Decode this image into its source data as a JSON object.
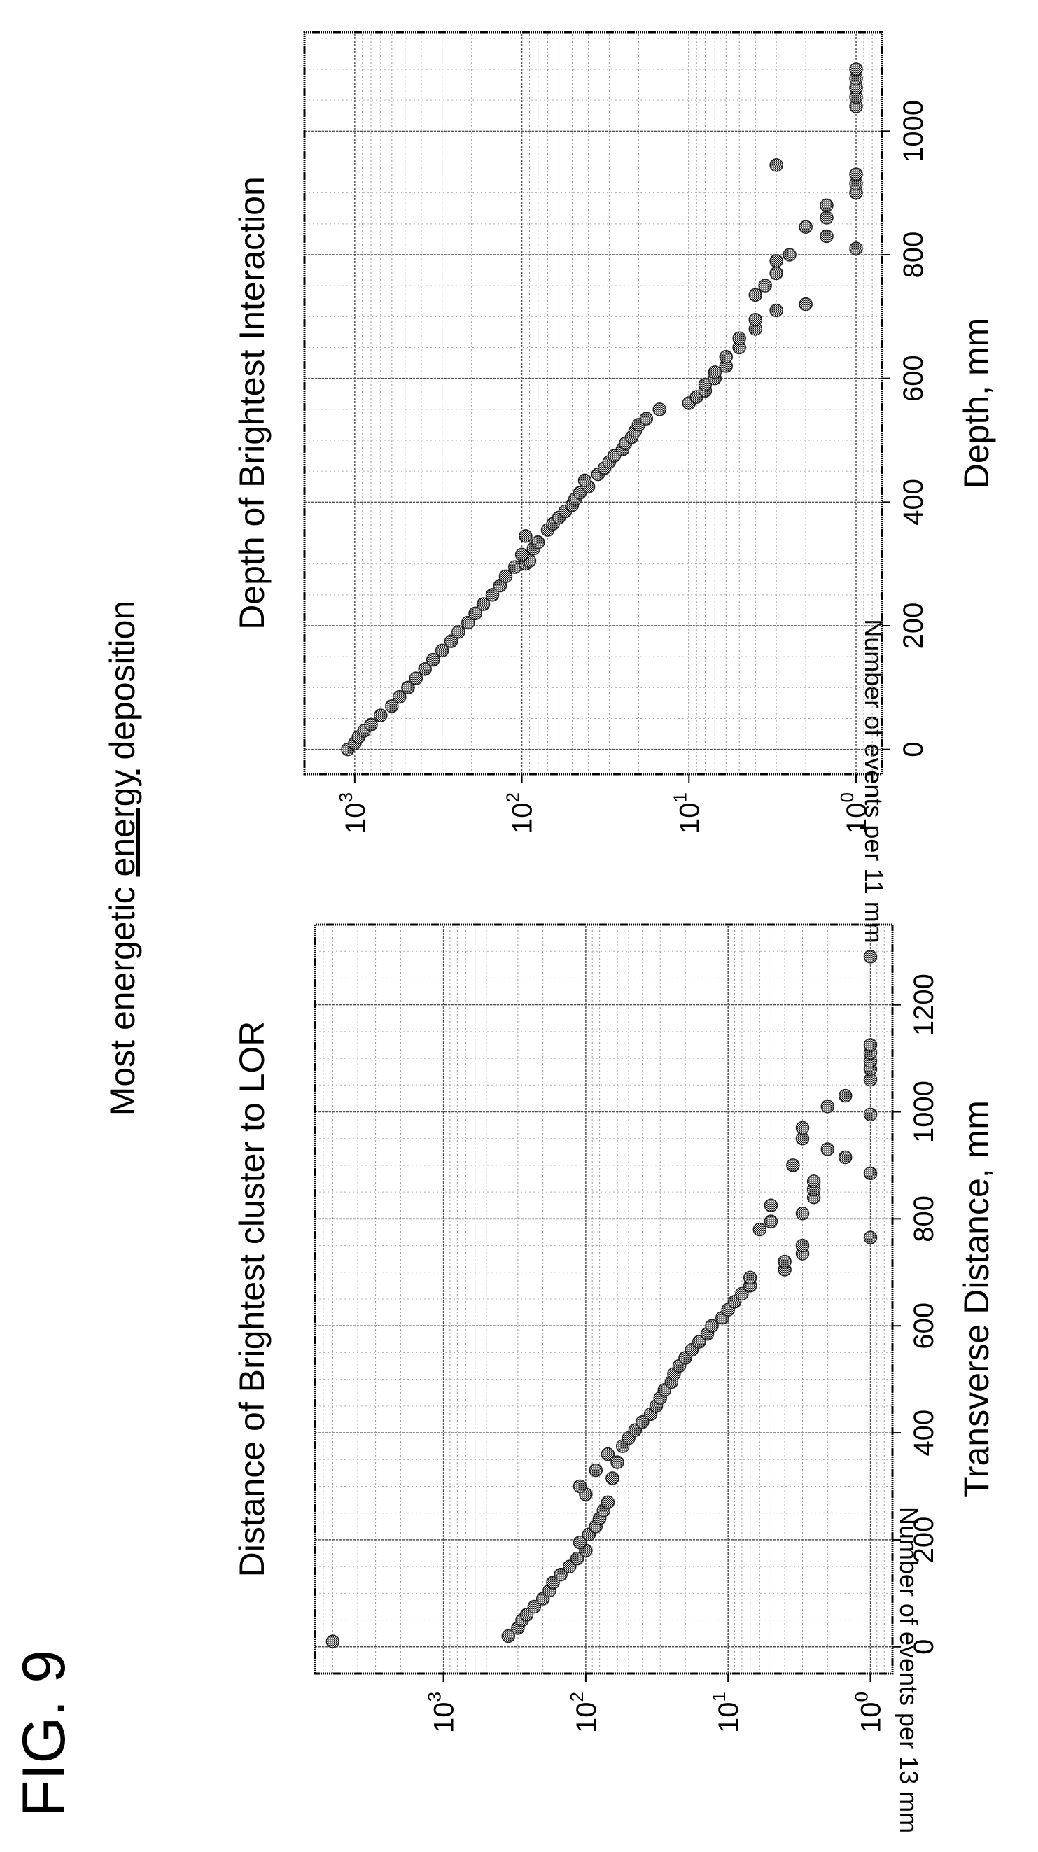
{
  "figure_label": "FIG. 9",
  "main_title_parts": [
    "Most energetic ",
    "energy",
    " deposition"
  ],
  "chart_data": [
    {
      "type": "scatter",
      "title": "Distance of Brightest cluster to LOR",
      "xlabel": "Transverse Distance, mm",
      "ylabel": "Number of events per 13 mm",
      "xlim": [
        -50,
        1350
      ],
      "xticks": [
        0,
        200,
        400,
        600,
        800,
        1000,
        1200
      ],
      "ylog": true,
      "ylim": [
        0.7,
        8000
      ],
      "yticks": [
        1,
        10,
        100,
        1000
      ],
      "ytick_labels": [
        [
          "10",
          "0"
        ],
        [
          "10",
          "1"
        ],
        [
          "10",
          "2"
        ],
        [
          "10",
          "3"
        ]
      ],
      "grid": true,
      "points": [
        [
          10,
          6000
        ],
        [
          20,
          350
        ],
        [
          35,
          300
        ],
        [
          50,
          280
        ],
        [
          60,
          260
        ],
        [
          75,
          230
        ],
        [
          90,
          200
        ],
        [
          105,
          180
        ],
        [
          120,
          170
        ],
        [
          135,
          150
        ],
        [
          150,
          130
        ],
        [
          165,
          115
        ],
        [
          180,
          100
        ],
        [
          195,
          110
        ],
        [
          210,
          95
        ],
        [
          225,
          85
        ],
        [
          240,
          80
        ],
        [
          255,
          75
        ],
        [
          270,
          70
        ],
        [
          285,
          100
        ],
        [
          300,
          110
        ],
        [
          315,
          65
        ],
        [
          330,
          85
        ],
        [
          345,
          60
        ],
        [
          360,
          70
        ],
        [
          375,
          55
        ],
        [
          390,
          50
        ],
        [
          405,
          45
        ],
        [
          420,
          40
        ],
        [
          435,
          35
        ],
        [
          450,
          32
        ],
        [
          465,
          30
        ],
        [
          480,
          28
        ],
        [
          495,
          25
        ],
        [
          510,
          24
        ],
        [
          525,
          22
        ],
        [
          540,
          20
        ],
        [
          555,
          18
        ],
        [
          570,
          16
        ],
        [
          585,
          14
        ],
        [
          600,
          13
        ],
        [
          615,
          11
        ],
        [
          630,
          10
        ],
        [
          645,
          9
        ],
        [
          660,
          8
        ],
        [
          675,
          7
        ],
        [
          690,
          7
        ],
        [
          705,
          4
        ],
        [
          720,
          4
        ],
        [
          735,
          3
        ],
        [
          750,
          3
        ],
        [
          765,
          1
        ],
        [
          780,
          6
        ],
        [
          795,
          5
        ],
        [
          810,
          3
        ],
        [
          825,
          5
        ],
        [
          840,
          2.5
        ],
        [
          855,
          2.5
        ],
        [
          870,
          2.5
        ],
        [
          885,
          1
        ],
        [
          900,
          3.5
        ],
        [
          915,
          1.5
        ],
        [
          930,
          2
        ],
        [
          950,
          3
        ],
        [
          970,
          3
        ],
        [
          995,
          1
        ],
        [
          1010,
          2
        ],
        [
          1030,
          1.5
        ],
        [
          1060,
          1
        ],
        [
          1080,
          1
        ],
        [
          1095,
          1
        ],
        [
          1110,
          1
        ],
        [
          1125,
          1
        ],
        [
          1290,
          1
        ]
      ]
    },
    {
      "type": "scatter",
      "title": "Depth of Brightest Interaction",
      "xlabel": "Depth, mm",
      "ylabel": "Number of events per 11 mm",
      "xlim": [
        -40,
        1160
      ],
      "xticks": [
        0,
        200,
        400,
        600,
        800,
        1000
      ],
      "ylog": true,
      "ylim": [
        0.7,
        2000
      ],
      "yticks": [
        1,
        10,
        100,
        1000
      ],
      "ytick_labels": [
        [
          "10",
          "0"
        ],
        [
          "10",
          "1"
        ],
        [
          "10",
          "2"
        ],
        [
          "10",
          "3"
        ]
      ],
      "grid": true,
      "points": [
        [
          0,
          1100
        ],
        [
          10,
          1000
        ],
        [
          20,
          950
        ],
        [
          30,
          880
        ],
        [
          40,
          800
        ],
        [
          55,
          700
        ],
        [
          70,
          600
        ],
        [
          85,
          540
        ],
        [
          100,
          480
        ],
        [
          115,
          430
        ],
        [
          130,
          380
        ],
        [
          145,
          340
        ],
        [
          160,
          300
        ],
        [
          175,
          265
        ],
        [
          190,
          240
        ],
        [
          205,
          210
        ],
        [
          220,
          190
        ],
        [
          235,
          170
        ],
        [
          250,
          150
        ],
        [
          265,
          135
        ],
        [
          280,
          125
        ],
        [
          295,
          110
        ],
        [
          300,
          95
        ],
        [
          305,
          90
        ],
        [
          315,
          100
        ],
        [
          325,
          85
        ],
        [
          335,
          80
        ],
        [
          345,
          95
        ],
        [
          355,
          70
        ],
        [
          365,
          65
        ],
        [
          375,
          60
        ],
        [
          385,
          55
        ],
        [
          395,
          50
        ],
        [
          405,
          48
        ],
        [
          415,
          45
        ],
        [
          425,
          40
        ],
        [
          435,
          42
        ],
        [
          445,
          35
        ],
        [
          455,
          32
        ],
        [
          465,
          30
        ],
        [
          475,
          28
        ],
        [
          485,
          25
        ],
        [
          495,
          24
        ],
        [
          505,
          22
        ],
        [
          515,
          21
        ],
        [
          525,
          20
        ],
        [
          535,
          18
        ],
        [
          550,
          15
        ],
        [
          560,
          10
        ],
        [
          570,
          9
        ],
        [
          580,
          8
        ],
        [
          590,
          8
        ],
        [
          600,
          7
        ],
        [
          610,
          7
        ],
        [
          620,
          6
        ],
        [
          635,
          6
        ],
        [
          650,
          5
        ],
        [
          665,
          5
        ],
        [
          680,
          4
        ],
        [
          695,
          4
        ],
        [
          710,
          3
        ],
        [
          720,
          2
        ],
        [
          735,
          4
        ],
        [
          750,
          3.5
        ],
        [
          770,
          3
        ],
        [
          790,
          3
        ],
        [
          800,
          2.5
        ],
        [
          810,
          1
        ],
        [
          830,
          1.5
        ],
        [
          845,
          2
        ],
        [
          860,
          1.5
        ],
        [
          880,
          1.5
        ],
        [
          900,
          1
        ],
        [
          915,
          1
        ],
        [
          930,
          1
        ],
        [
          945,
          3
        ],
        [
          1040,
          1
        ],
        [
          1055,
          1
        ],
        [
          1070,
          1
        ],
        [
          1085,
          1
        ],
        [
          1100,
          1
        ]
      ]
    }
  ]
}
